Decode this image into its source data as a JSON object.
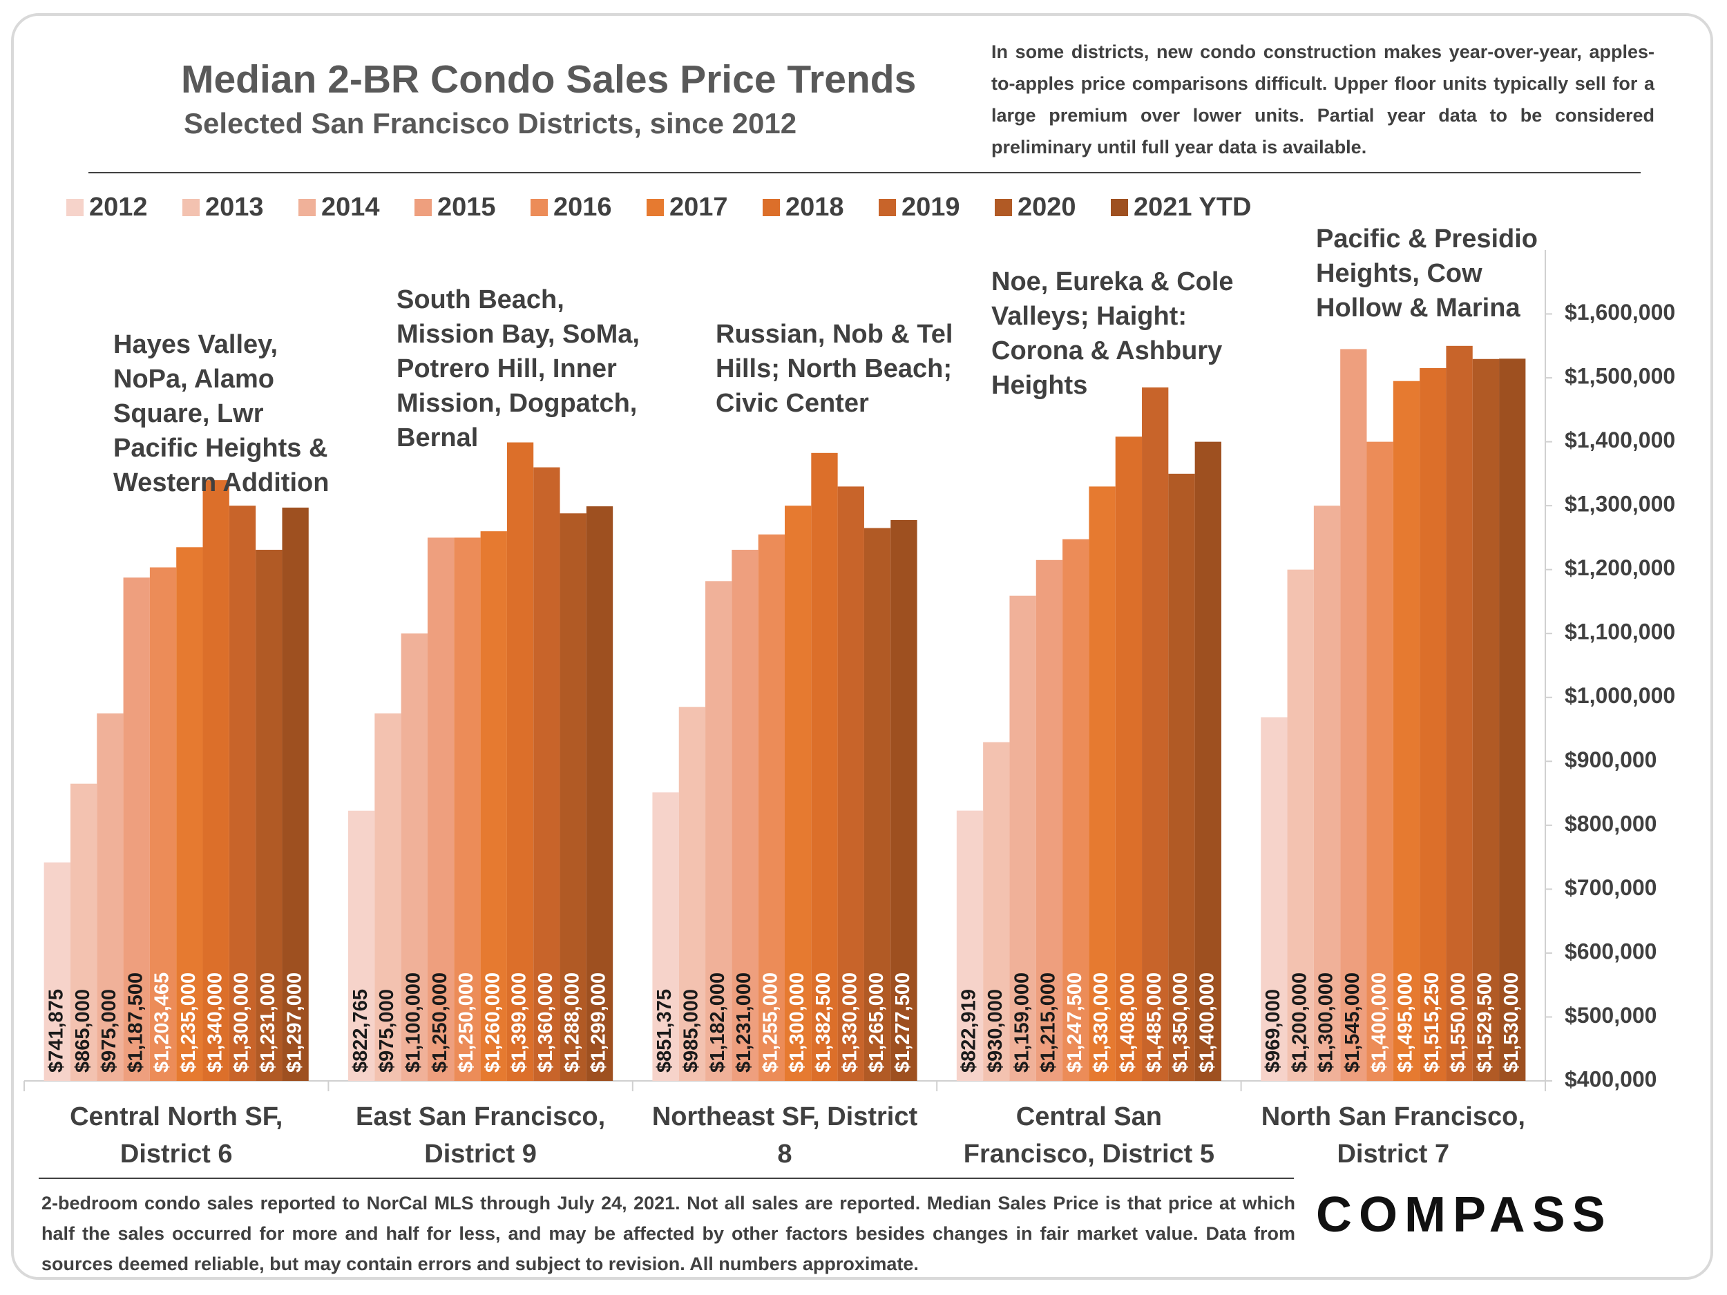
{
  "chart_data": {
    "type": "bar",
    "title": "Median 2-BR Condo Sales Price Trends",
    "subtitle": "Selected San Francisco Districts, since 2012",
    "note": "In some districts, new condo construction makes year-over-year, apples-to-apples price comparisons difficult. Upper floor units typically sell for a large premium over lower units. Partial year data to be considered preliminary until full year data is available.",
    "categories": [
      "Central North SF, District 6",
      "East San Francisco, District 9",
      "Northeast SF, District 8",
      "Central San Francisco, District 5",
      "North San Francisco, District 7"
    ],
    "annotations": [
      "Hayes Valley, NoPa, Alamo Square, Lwr Pacific Heights & Western Addition",
      "South Beach, Mission Bay, SoMa, Potrero Hill, Inner Mission, Dogpatch, Bernal",
      "Russian, Nob & Tel Hills; North Beach; Civic Center",
      "Noe, Eureka & Cole Valleys; Haight: Corona & Ashbury Heights",
      "Pacific & Presidio Heights, Cow Hollow & Marina"
    ],
    "series": [
      {
        "name": "2012",
        "color": "#f6d3ca",
        "values": [
          741875,
          822765,
          851375,
          822919,
          969000
        ],
        "value_labels": [
          "$741,875",
          "$822,765",
          "$851,375",
          "$822,919",
          "$969,000"
        ]
      },
      {
        "name": "2013",
        "color": "#f3c2b0",
        "values": [
          865000,
          975000,
          985000,
          930000,
          1200000
        ],
        "value_labels": [
          "$865,000",
          "$975,000",
          "$985,000",
          "$930,000",
          "$1,200,000"
        ]
      },
      {
        "name": "2014",
        "color": "#f0b199",
        "values": [
          975000,
          1100000,
          1182000,
          1159000,
          1300000
        ],
        "value_labels": [
          "$975,000",
          "$1,100,000",
          "$1,182,000",
          "$1,159,000",
          "$1,300,000"
        ]
      },
      {
        "name": "2015",
        "color": "#ee9f7e",
        "values": [
          1187500,
          1250000,
          1231000,
          1215000,
          1545000
        ],
        "value_labels": [
          "$1,187,500",
          "$1,250,000",
          "$1,231,000",
          "$1,215,000",
          "$1,545,000"
        ]
      },
      {
        "name": "2016",
        "color": "#ec8c58",
        "values": [
          1203465,
          1250000,
          1255000,
          1247500,
          1400000
        ],
        "value_labels": [
          "$1,203,465",
          "$1,250,000",
          "$1,255,000",
          "$1,247,500",
          "$1,400,000"
        ]
      },
      {
        "name": "2017",
        "color": "#e67a30",
        "values": [
          1235000,
          1260000,
          1300000,
          1330000,
          1495000
        ],
        "value_labels": [
          "$1,235,000",
          "$1,260,000",
          "$1,300,000",
          "$1,330,000",
          "$1,495,000"
        ]
      },
      {
        "name": "2018",
        "color": "#dc6f2a",
        "values": [
          1340000,
          1399000,
          1382500,
          1408000,
          1515250
        ],
        "value_labels": [
          "$1,340,000",
          "$1,399,000",
          "$1,382,500",
          "$1,408,000",
          "$1,515,250"
        ]
      },
      {
        "name": "2019",
        "color": "#c8642a",
        "values": [
          1300000,
          1360000,
          1330000,
          1485000,
          1550000
        ],
        "value_labels": [
          "$1,300,000",
          "$1,360,000",
          "$1,330,000",
          "$1,485,000",
          "$1,550,000"
        ]
      },
      {
        "name": "2020",
        "color": "#b15a25",
        "values": [
          1231000,
          1288000,
          1265000,
          1350000,
          1529500
        ],
        "value_labels": [
          "$1,231,000",
          "$1,288,000",
          "$1,265,000",
          "$1,350,000",
          "$1,529,500"
        ]
      },
      {
        "name": "2021 YTD",
        "color": "#9e5020",
        "values": [
          1297000,
          1299000,
          1277500,
          1400000,
          1530000
        ],
        "value_labels": [
          "$1,297,000",
          "$1,299,000",
          "$1,277,500",
          "$1,400,000",
          "$1,530,000"
        ]
      }
    ],
    "ylim": [
      400000,
      1700000
    ],
    "yticks": [
      {
        "value": 400000,
        "label": "$400,000"
      },
      {
        "value": 500000,
        "label": "$500,000"
      },
      {
        "value": 600000,
        "label": "$600,000"
      },
      {
        "value": 700000,
        "label": "$700,000"
      },
      {
        "value": 800000,
        "label": "$800,000"
      },
      {
        "value": 900000,
        "label": "$900,000"
      },
      {
        "value": 1000000,
        "label": "$1,000,000"
      },
      {
        "value": 1100000,
        "label": "$1,100,000"
      },
      {
        "value": 1200000,
        "label": "$1,200,000"
      },
      {
        "value": 1300000,
        "label": "$1,300,000"
      },
      {
        "value": 1400000,
        "label": "$1,400,000"
      },
      {
        "value": 1500000,
        "label": "$1,500,000"
      },
      {
        "value": 1600000,
        "label": "$1,600,000"
      }
    ],
    "y_axis_side": "right",
    "grid": false,
    "footnote": "2-bedroom condo sales reported to NorCal MLS through July 24, 2021. Not all sales are reported. Median Sales Price is that price at which half the sales occurred for more and half for less, and may be affected by other factors besides changes in fair market value. Data from sources deemed reliable, but may contain errors and subject to revision.  All numbers approximate.",
    "logo": "COMPASS"
  }
}
